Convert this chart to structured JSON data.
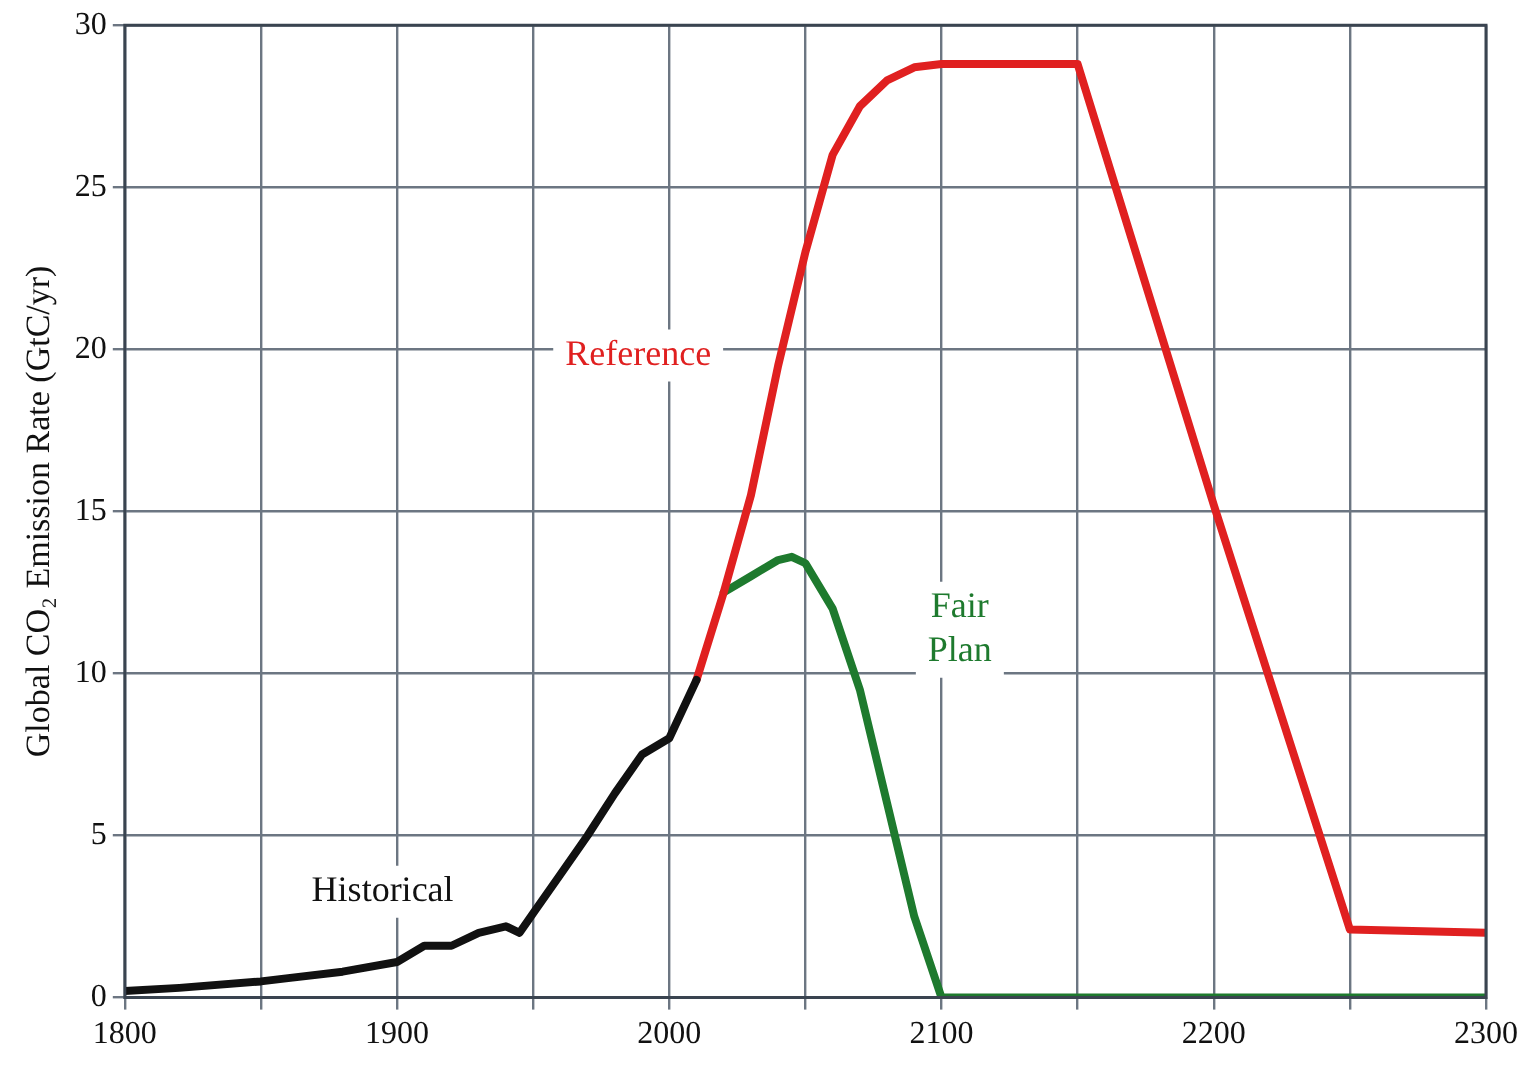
{
  "chart_data": {
    "type": "line",
    "ylabel": "Global CO₂ Emission Rate (GtC/yr)",
    "xlim": [
      1800,
      2300
    ],
    "xticks": [
      1800,
      {
        "value": 1850,
        "label": null
      },
      1900,
      {
        "value": 1950,
        "label": null
      },
      2000,
      {
        "value": 2050,
        "label": null
      },
      2100,
      {
        "value": 2150,
        "label": null
      },
      2200,
      {
        "value": 2250,
        "label": null
      },
      2300
    ],
    "ylim": [
      0,
      30
    ],
    "yticks": [
      0,
      5,
      10,
      15,
      20,
      25,
      30
    ],
    "grid": true,
    "legend": false,
    "marker": "none",
    "line_style": "solid",
    "series": [
      {
        "name": "Historical",
        "color": "#111111",
        "x": [
          1800,
          1820,
          1850,
          1860,
          1880,
          1900,
          1910,
          1920,
          1930,
          1940,
          1945,
          1950,
          1960,
          1970,
          1980,
          1990,
          2000,
          2010
        ],
        "values": [
          0.2,
          0.3,
          0.5,
          0.6,
          0.8,
          1.1,
          1.6,
          1.6,
          2.0,
          2.2,
          2.0,
          2.6,
          3.8,
          5.0,
          6.3,
          7.5,
          8.0,
          9.8
        ]
      },
      {
        "name": "Reference",
        "color": "#e02020",
        "x": [
          2010,
          2020,
          2030,
          2040,
          2050,
          2060,
          2070,
          2080,
          2090,
          2100,
          2150,
          2200,
          2250,
          2300
        ],
        "values": [
          9.8,
          12.5,
          15.5,
          19.5,
          23,
          26,
          27.5,
          28.3,
          28.7,
          28.8,
          28.8,
          15.2,
          2.1,
          2.0
        ]
      },
      {
        "name": "Fair Plan",
        "color": "#1e7a2e",
        "x": [
          2020,
          2030,
          2040,
          2045,
          2050,
          2060,
          2070,
          2080,
          2090,
          2100,
          2300
        ],
        "values": [
          12.5,
          13.0,
          13.5,
          13.6,
          13.4,
          12,
          9.5,
          6,
          2.5,
          0,
          0
        ]
      }
    ]
  }
}
